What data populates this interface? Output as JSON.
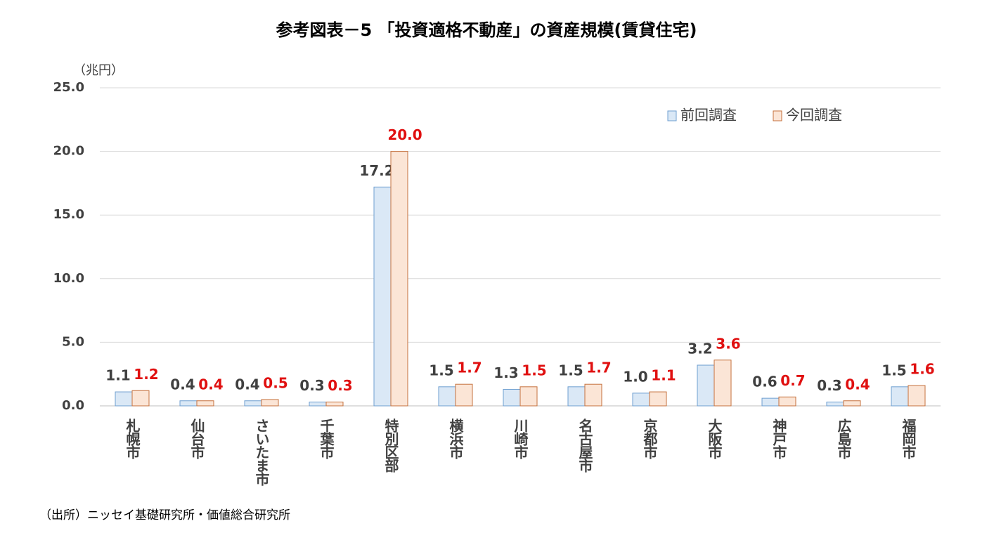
{
  "chart_data": {
    "type": "bar",
    "title": "参考図表－5 「投資適格不動産」の資産規模(賃貸住宅)",
    "y_label": "（兆円）",
    "source": "（出所）ニッセイ基礎研究所・価値総合研究所",
    "categories": [
      "札幌市",
      "仙台市",
      "さいたま市",
      "千葉市",
      "特別区部",
      "横浜市",
      "川崎市",
      "名古屋市",
      "京都市",
      "大阪市",
      "神戸市",
      "広島市",
      "福岡市"
    ],
    "series": [
      {
        "name": "前回調査",
        "color": "#dae8f6",
        "edge_color": "#6f9fd0",
        "label_color": "#404040",
        "values": [
          1.1,
          0.4,
          0.4,
          0.3,
          17.2,
          1.5,
          1.3,
          1.5,
          1.0,
          3.2,
          0.6,
          0.3,
          1.5
        ],
        "value_labels": [
          "1.1",
          "0.4",
          "0.4",
          "0.3",
          "17.2",
          "1.5",
          "1.3",
          "1.5",
          "1.0",
          "3.2",
          "0.6",
          "0.3",
          "1.5"
        ]
      },
      {
        "name": "今回調査",
        "color": "#fbe5d6",
        "edge_color": "#c5713d",
        "label_color": "#e01010",
        "values": [
          1.2,
          0.4,
          0.5,
          0.3,
          20.0,
          1.7,
          1.5,
          1.7,
          1.1,
          3.6,
          0.7,
          0.4,
          1.6
        ],
        "value_labels": [
          "1.2",
          "0.4",
          "0.5",
          "0.3",
          "20.0",
          "1.7",
          "1.5",
          "1.7",
          "1.1",
          "3.6",
          "0.7",
          "0.4",
          "1.6"
        ]
      }
    ],
    "ylim": [
      0,
      25
    ],
    "yticks": [
      {
        "value": 0,
        "label": "0.0"
      },
      {
        "value": 5,
        "label": "5.0"
      },
      {
        "value": 10,
        "label": "10.0"
      },
      {
        "value": 15,
        "label": "15.0"
      },
      {
        "value": 20,
        "label": "20.0"
      },
      {
        "value": 25,
        "label": "25.0"
      }
    ],
    "grid": true,
    "legend": "top-right"
  }
}
